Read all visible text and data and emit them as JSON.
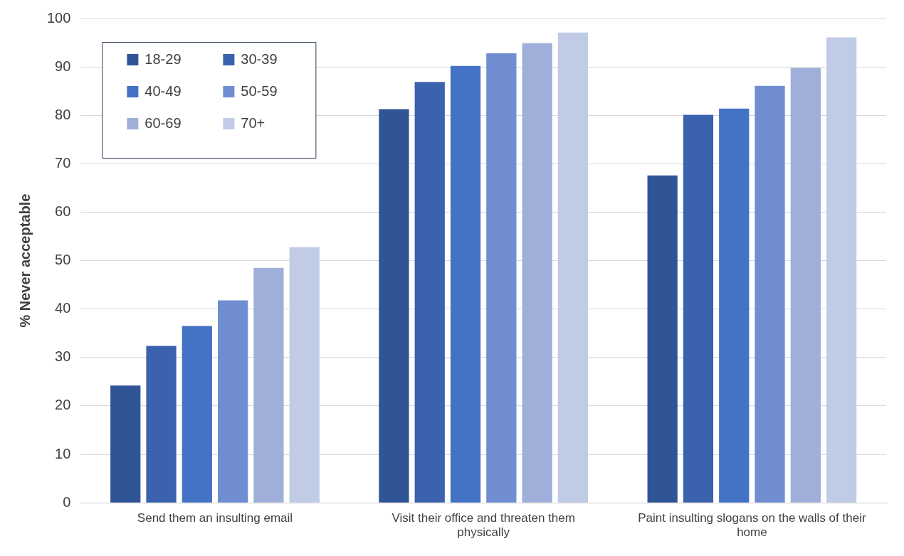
{
  "chart_data": {
    "type": "bar",
    "ylabel": "% Never acceptable",
    "categories": [
      "Send them an insulting email",
      "Visit their office and threaten them physically",
      "Paint insulting slogans on the walls of their home"
    ],
    "series": [
      {
        "name": "18-29",
        "color": "#2f5597",
        "values": [
          24.2,
          81.3,
          67.6
        ]
      },
      {
        "name": "30-39",
        "color": "#3a62ad",
        "values": [
          32.4,
          86.9,
          80.1
        ]
      },
      {
        "name": "40-49",
        "color": "#4472c4",
        "values": [
          36.5,
          90.2,
          81.4
        ]
      },
      {
        "name": "50-59",
        "color": "#6f8dd0",
        "values": [
          41.8,
          92.8,
          86.1
        ]
      },
      {
        "name": "60-69",
        "color": "#a0afda",
        "values": [
          48.5,
          94.9,
          89.8
        ]
      },
      {
        "name": "70+",
        "color": "#c0cbe6",
        "values": [
          52.8,
          97.1,
          96.1
        ]
      }
    ],
    "ylim": [
      0,
      100
    ],
    "yticks": [
      0,
      10,
      20,
      30,
      40,
      50,
      60,
      70,
      80,
      90,
      100
    ],
    "grid": "y",
    "legend": "top left"
  }
}
